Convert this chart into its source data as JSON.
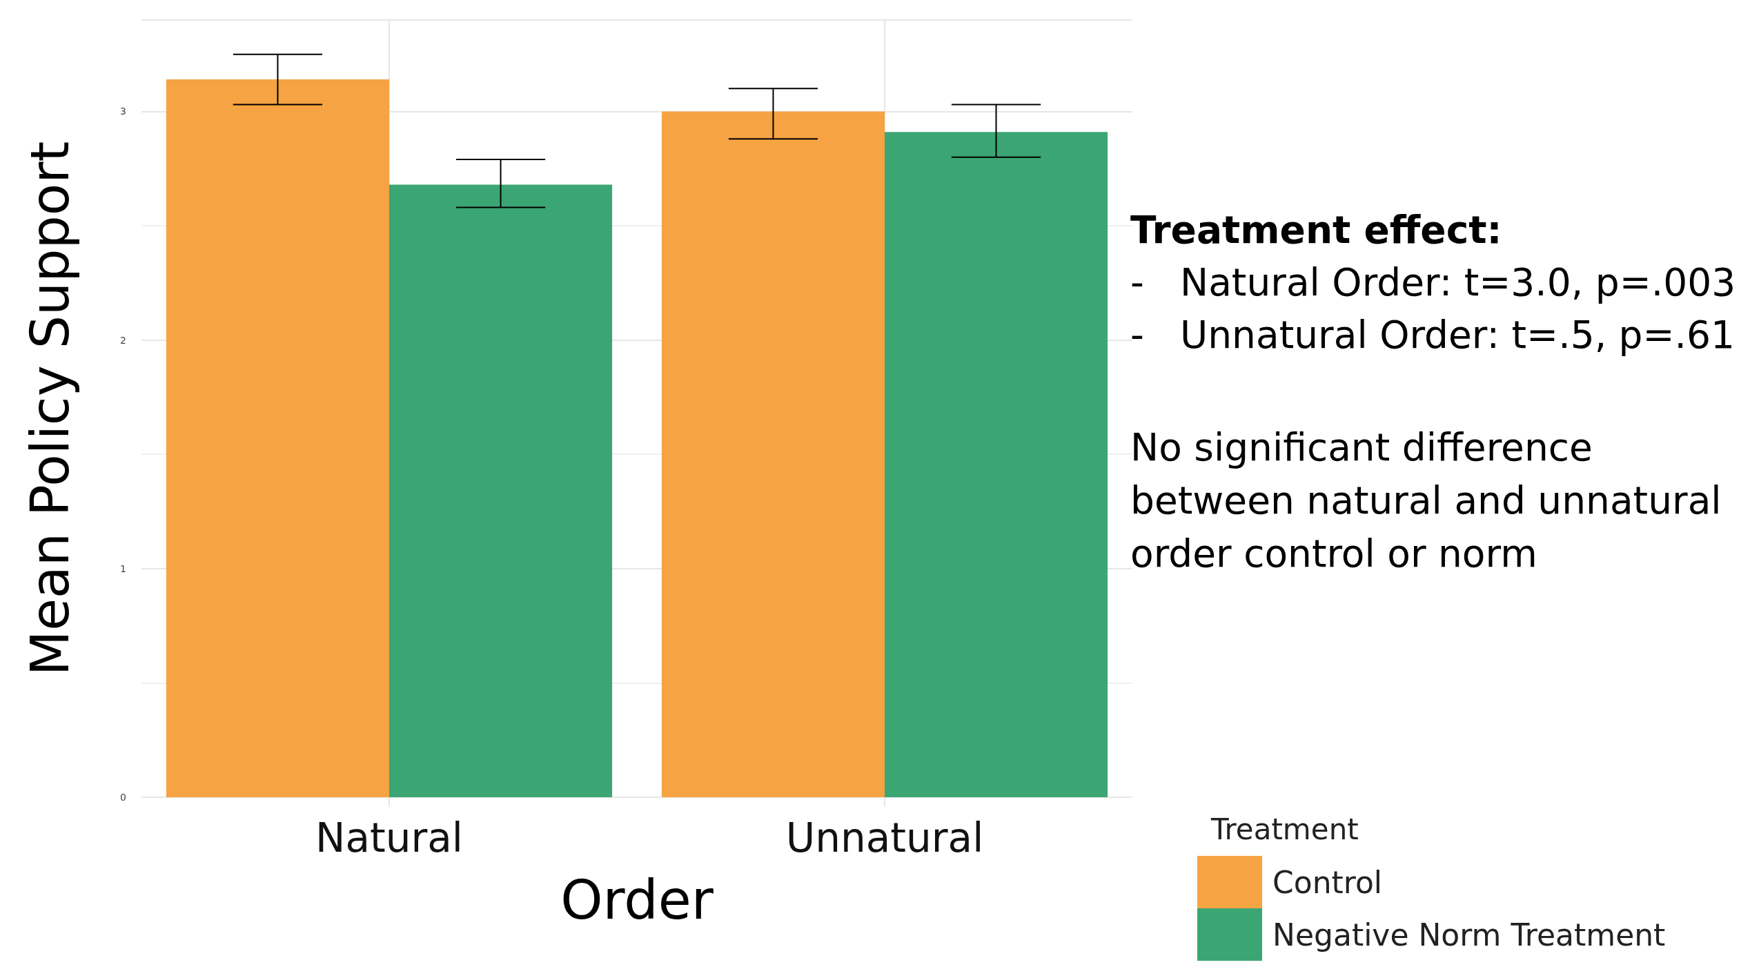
{
  "chart_data": {
    "type": "bar",
    "xlabel": "Order",
    "ylabel": "Mean Policy Support",
    "legend_title": "Treatment",
    "categories": [
      "Natural",
      "Unnatural"
    ],
    "series": [
      {
        "name": "Control",
        "color": "#f6a343",
        "values": [
          3.14,
          3.0
        ],
        "errors": [
          [
            3.03,
            3.25
          ],
          [
            2.88,
            3.1
          ]
        ]
      },
      {
        "name": "Negative Norm Treatment",
        "color": "#3ba674",
        "values": [
          2.68,
          2.91
        ],
        "errors": [
          [
            2.58,
            2.79
          ],
          [
            2.8,
            3.03
          ]
        ]
      }
    ],
    "ylim": [
      0,
      3.4
    ],
    "yticks": [
      0,
      1,
      2,
      3
    ],
    "grid": true,
    "legend": "bottom right",
    "annotations": [
      "Treatment effect:",
      "-\tNatural Order: t=3.0, p=.003",
      "-\tUnnatural Order: t=.5, p=.61",
      "No significant difference between natural and unnatural order control or norm"
    ]
  }
}
